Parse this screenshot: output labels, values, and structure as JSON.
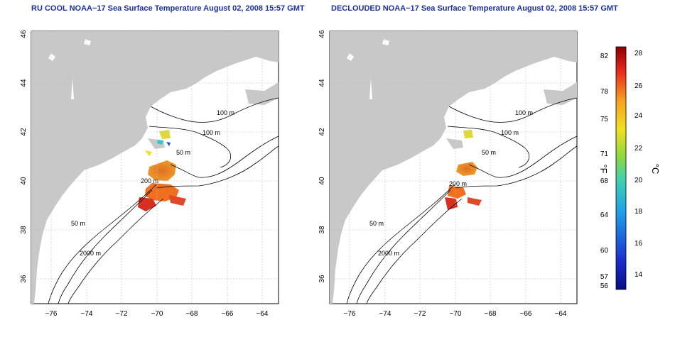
{
  "left_map": {
    "title": "RU COOL NOAA−17 Sea Surface Temperature August 02, 2008 15:57 GMT",
    "contour_labels": [
      "100 m",
      "100 m",
      "50 m",
      "200 m",
      "50 m",
      "2000 m"
    ]
  },
  "right_map": {
    "title": "DECLOUDED NOAA−17 Sea Surface Temperature August 02, 2008 15:57 GMT",
    "contour_labels": [
      "100 m",
      "100 m",
      "50 m",
      "200 m",
      "50 m",
      "2000 m"
    ]
  },
  "axes": {
    "x_ticks": [
      "−76",
      "−74",
      "−72",
      "−70",
      "−68",
      "−66",
      "−64"
    ],
    "y_ticks": [
      "46",
      "44",
      "42",
      "40",
      "38",
      "36"
    ],
    "lon_range": [
      -77,
      -63
    ],
    "lat_range": [
      35,
      46
    ]
  },
  "colorbar": {
    "fahrenheit_ticks": [
      "82",
      "78",
      "75",
      "71",
      "68",
      "64",
      "60",
      "57",
      "56"
    ],
    "celsius_ticks": [
      "28",
      "26",
      "24",
      "22",
      "20",
      "18",
      "16",
      "14"
    ],
    "fahrenheit_label": "°F",
    "celsius_label": "°C",
    "colors": [
      "#8b0000",
      "#e8281c",
      "#f5a020",
      "#f0e020",
      "#7fd040",
      "#30c8d0",
      "#2050e0",
      "#0a0a80"
    ]
  },
  "colors": {
    "land": "#c8c8c8",
    "title": "#1a2fa0",
    "grid": "#c0c0c0"
  }
}
